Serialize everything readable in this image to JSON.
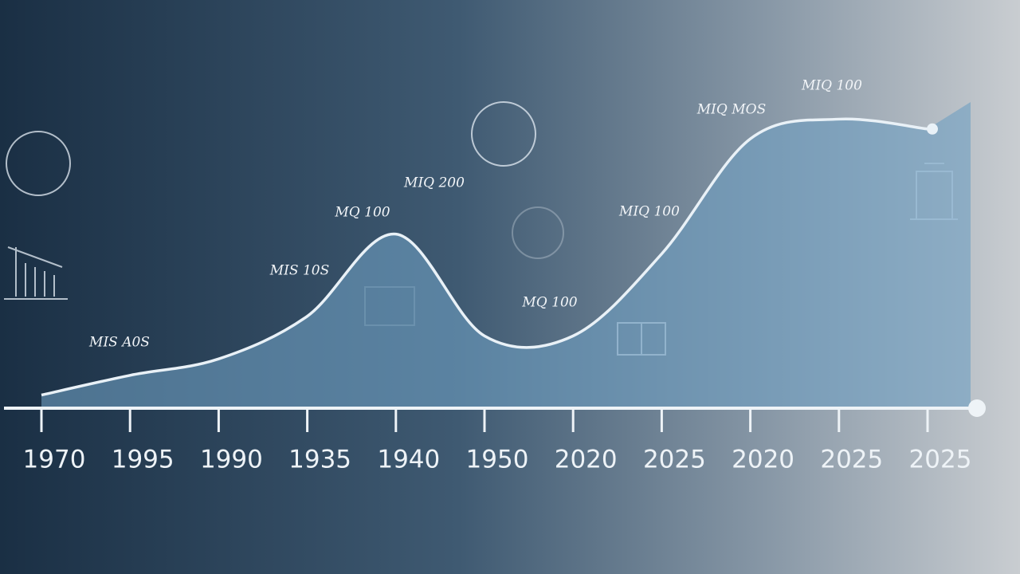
{
  "chart_data": {
    "type": "area",
    "categories": [
      "1970",
      "1995",
      "1990",
      "1935",
      "1940",
      "1950",
      "2020",
      "2025",
      "2020",
      "2025",
      "2025"
    ],
    "values": [
      4,
      10,
      15,
      28,
      53,
      22,
      22,
      47,
      82,
      88,
      85
    ],
    "color": "#6e9fc2",
    "line_color": "#e9f1f7",
    "annotations": [
      "MIS A0S",
      "MIS 10S",
      "MQ 100",
      "MIQ 200",
      "MQ 100",
      "MIQ 100",
      "MIQ MOS",
      "MIQ 100"
    ]
  }
}
